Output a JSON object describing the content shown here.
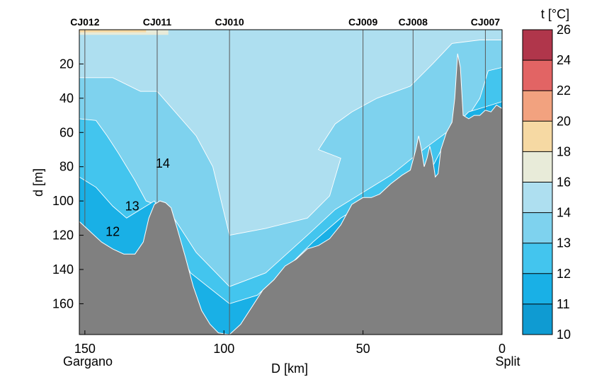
{
  "chart_data": {
    "type": "heatmap",
    "title": "",
    "xlabel": "D [km]",
    "ylabel": "d [m]",
    "xlim": [
      152,
      0
    ],
    "ylim": [
      0,
      178
    ],
    "x_ticks": [
      150,
      100,
      50,
      0
    ],
    "y_ticks": [
      20,
      40,
      60,
      80,
      100,
      120,
      140,
      160
    ],
    "x_end_labels": {
      "left": "Gargano",
      "right": "Split"
    },
    "stations": [
      {
        "name": "CJ012",
        "km": 150
      },
      {
        "name": "CJ011",
        "km": 124
      },
      {
        "name": "CJ010",
        "km": 98
      },
      {
        "name": "CJ009",
        "km": 50
      },
      {
        "name": "CJ008",
        "km": 32
      },
      {
        "name": "CJ007",
        "km": 6
      }
    ],
    "contour_labels": [
      {
        "text": "14",
        "km": 122,
        "depth": 78
      },
      {
        "text": "13",
        "km": 133,
        "depth": 103
      },
      {
        "text": "12",
        "km": 140,
        "depth": 118
      }
    ],
    "colorbar": {
      "title": "t [°C]",
      "ticks": [
        10,
        11,
        12,
        13,
        14,
        16,
        18,
        20,
        22,
        24,
        26
      ],
      "bands": [
        {
          "from": 10,
          "to": 11,
          "color": "#0f9bd2"
        },
        {
          "from": 11,
          "to": 12,
          "color": "#19b0e6"
        },
        {
          "from": 12,
          "to": 13,
          "color": "#43c5ee"
        },
        {
          "from": 13,
          "to": 14,
          "color": "#7ed2ee"
        },
        {
          "from": 14,
          "to": 16,
          "color": "#aedff0"
        },
        {
          "from": 16,
          "to": 18,
          "color": "#e8ebd9"
        },
        {
          "from": 18,
          "to": 20,
          "color": "#f6d9a3"
        },
        {
          "from": 20,
          "to": 22,
          "color": "#f2a27f"
        },
        {
          "from": 22,
          "to": 24,
          "color": "#e26464"
        },
        {
          "from": 24,
          "to": 26,
          "color": "#b0364b"
        }
      ]
    },
    "zones": {
      "t_14_16": {
        "color": "#aedff0"
      },
      "t_13_14": {
        "color": "#7ed2ee",
        "top_depth": [
          [
            152,
            28
          ],
          [
            140,
            28
          ],
          [
            130,
            36
          ],
          [
            124,
            36
          ],
          [
            110,
            62
          ],
          [
            104,
            80
          ],
          [
            98,
            120
          ],
          [
            85,
            116
          ],
          [
            70,
            110
          ],
          [
            62,
            97
          ],
          [
            58,
            75
          ],
          [
            66,
            70
          ],
          [
            60,
            55
          ],
          [
            54,
            48
          ],
          [
            45,
            40
          ],
          [
            33,
            33
          ],
          [
            25,
            20
          ],
          [
            18,
            8
          ],
          [
            8,
            6
          ],
          [
            0,
            6
          ]
        ]
      },
      "t_12_13": {
        "color": "#43c5ee",
        "top_depth": [
          [
            152,
            52
          ],
          [
            146,
            53
          ],
          [
            142,
            62
          ],
          [
            138,
            72
          ],
          [
            132,
            88
          ],
          [
            128,
            100
          ],
          [
            120,
            105
          ],
          [
            110,
            130
          ],
          [
            98,
            150
          ],
          [
            85,
            142
          ],
          [
            70,
            120
          ],
          [
            60,
            105
          ],
          [
            50,
            95
          ],
          [
            40,
            85
          ],
          [
            30,
            72
          ],
          [
            20,
            60
          ],
          [
            12,
            50
          ],
          [
            8,
            40
          ],
          [
            5,
            24
          ],
          [
            0,
            22
          ]
        ]
      },
      "t_11_12": {
        "color": "#19b0e6",
        "top_depth": [
          [
            152,
            86
          ],
          [
            146,
            92
          ],
          [
            140,
            103
          ],
          [
            135,
            110
          ],
          [
            125,
            100
          ],
          [
            112,
            142
          ],
          [
            98,
            160
          ],
          [
            88,
            155
          ],
          [
            78,
            140
          ],
          [
            68,
            124
          ],
          [
            58,
            110
          ],
          [
            48,
            100
          ],
          [
            38,
            95
          ],
          [
            25,
            80
          ],
          [
            18,
            58
          ],
          [
            12,
            48
          ],
          [
            6,
            45
          ],
          [
            0,
            42
          ]
        ]
      },
      "t_16_18": {
        "color": "#e8ebd9",
        "top_depth": [
          [
            152,
            0
          ],
          [
            152,
            3
          ],
          [
            120,
            3
          ],
          [
            120,
            0
          ]
        ]
      },
      "t_18_20": {
        "color": "#f6d9a3",
        "top_depth": [
          [
            152,
            0
          ],
          [
            152,
            1.5
          ],
          [
            128,
            1.5
          ],
          [
            128,
            0
          ]
        ]
      }
    },
    "bathymetry_depth": [
      [
        152,
        112
      ],
      [
        148,
        118
      ],
      [
        144,
        124
      ],
      [
        140,
        128
      ],
      [
        136,
        131
      ],
      [
        132,
        131
      ],
      [
        129,
        124
      ],
      [
        127,
        110
      ],
      [
        125,
        102
      ],
      [
        123,
        100
      ],
      [
        121,
        101
      ],
      [
        119,
        104
      ],
      [
        117,
        115
      ],
      [
        114,
        132
      ],
      [
        111,
        150
      ],
      [
        108,
        164
      ],
      [
        105,
        172
      ],
      [
        102,
        177
      ],
      [
        98,
        178
      ],
      [
        94,
        172
      ],
      [
        90,
        162
      ],
      [
        86,
        152
      ],
      [
        82,
        146
      ],
      [
        78,
        138
      ],
      [
        74,
        134
      ],
      [
        70,
        128
      ],
      [
        66,
        126
      ],
      [
        62,
        122
      ],
      [
        58,
        114
      ],
      [
        54,
        102
      ],
      [
        50,
        98
      ],
      [
        47,
        98
      ],
      [
        44,
        96
      ],
      [
        40,
        90
      ],
      [
        36,
        85
      ],
      [
        33,
        82
      ],
      [
        31,
        70
      ],
      [
        30,
        62
      ],
      [
        29,
        70
      ],
      [
        28,
        80
      ],
      [
        27,
        75
      ],
      [
        26,
        68
      ],
      [
        25,
        75
      ],
      [
        24,
        86
      ],
      [
        23,
        84
      ],
      [
        22,
        70
      ],
      [
        20,
        60
      ],
      [
        18,
        54
      ],
      [
        17,
        40
      ],
      [
        16,
        14
      ],
      [
        15,
        22
      ],
      [
        14,
        50
      ],
      [
        12,
        52
      ],
      [
        10,
        50
      ],
      [
        8,
        50
      ],
      [
        6,
        47
      ],
      [
        4,
        48
      ],
      [
        2,
        44
      ],
      [
        0,
        46
      ]
    ],
    "background_color": "#aedff0",
    "seafloor_color": "#808080"
  }
}
